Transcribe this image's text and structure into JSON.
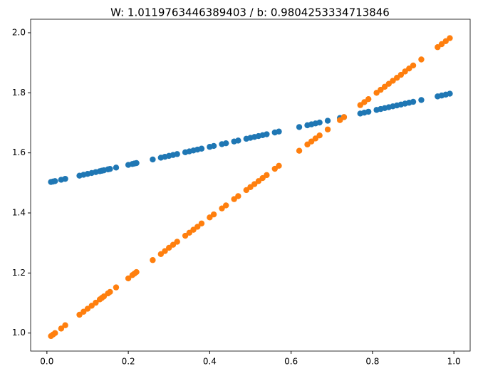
{
  "chart_data": {
    "type": "scatter",
    "title": "W: 1.0119763446389403 / b: 0.9804253334713846",
    "x": [
      0.01,
      0.015,
      0.02,
      0.035,
      0.045,
      0.08,
      0.09,
      0.1,
      0.11,
      0.12,
      0.13,
      0.135,
      0.14,
      0.15,
      0.155,
      0.17,
      0.2,
      0.21,
      0.215,
      0.22,
      0.26,
      0.28,
      0.29,
      0.3,
      0.31,
      0.32,
      0.34,
      0.35,
      0.36,
      0.37,
      0.38,
      0.4,
      0.41,
      0.43,
      0.44,
      0.46,
      0.47,
      0.49,
      0.5,
      0.51,
      0.52,
      0.53,
      0.54,
      0.56,
      0.57,
      0.62,
      0.64,
      0.65,
      0.66,
      0.67,
      0.69,
      0.72,
      0.73,
      0.77,
      0.78,
      0.79,
      0.81,
      0.82,
      0.83,
      0.84,
      0.85,
      0.86,
      0.87,
      0.88,
      0.89,
      0.9,
      0.92,
      0.96,
      0.97,
      0.98,
      0.99
    ],
    "series": [
      {
        "color": "#1f77b4",
        "values": [
          1.503,
          1.5045,
          1.506,
          1.5105,
          1.5135,
          1.524,
          1.527,
          1.53,
          1.533,
          1.536,
          1.539,
          1.5405,
          1.542,
          1.545,
          1.5465,
          1.551,
          1.56,
          1.563,
          1.5645,
          1.566,
          1.578,
          1.584,
          1.587,
          1.59,
          1.593,
          1.596,
          1.602,
          1.605,
          1.608,
          1.611,
          1.614,
          1.62,
          1.623,
          1.629,
          1.632,
          1.638,
          1.641,
          1.647,
          1.65,
          1.653,
          1.656,
          1.659,
          1.662,
          1.668,
          1.671,
          1.686,
          1.692,
          1.695,
          1.698,
          1.701,
          1.707,
          1.716,
          1.719,
          1.731,
          1.734,
          1.737,
          1.743,
          1.746,
          1.749,
          1.752,
          1.755,
          1.758,
          1.761,
          1.764,
          1.767,
          1.77,
          1.776,
          1.788,
          1.791,
          1.794,
          1.797
        ]
      },
      {
        "color": "#ff7f0e",
        "values": [
          0.99,
          0.995,
          1.0,
          1.015,
          1.026,
          1.061,
          1.071,
          1.081,
          1.091,
          1.101,
          1.112,
          1.117,
          1.122,
          1.132,
          1.137,
          1.152,
          1.182,
          1.193,
          1.198,
          1.203,
          1.243,
          1.263,
          1.273,
          1.284,
          1.294,
          1.304,
          1.324,
          1.334,
          1.344,
          1.354,
          1.365,
          1.385,
          1.395,
          1.415,
          1.425,
          1.446,
          1.456,
          1.476,
          1.486,
          1.496,
          1.506,
          1.516,
          1.526,
          1.547,
          1.557,
          1.607,
          1.628,
          1.638,
          1.648,
          1.658,
          1.678,
          1.709,
          1.719,
          1.759,
          1.769,
          1.779,
          1.8,
          1.81,
          1.82,
          1.83,
          1.84,
          1.85,
          1.86,
          1.871,
          1.881,
          1.891,
          1.911,
          1.952,
          1.962,
          1.972,
          1.982
        ]
      }
    ],
    "xlim": [
      -0.04,
      1.04
    ],
    "ylim": [
      0.94,
      2.045
    ],
    "xticks": [
      {
        "value": 0,
        "label": "0.0"
      },
      {
        "value": 0.2,
        "label": "0.2"
      },
      {
        "value": 0.4,
        "label": "0.4"
      },
      {
        "value": 0.6,
        "label": "0.6"
      },
      {
        "value": 0.8,
        "label": "0.8"
      },
      {
        "value": 1,
        "label": "1.0"
      }
    ],
    "yticks": [
      {
        "value": 1,
        "label": "1.0"
      },
      {
        "value": 1.2,
        "label": "1.2"
      },
      {
        "value": 1.4,
        "label": "1.4"
      },
      {
        "value": 1.6,
        "label": "1.6"
      },
      {
        "value": 1.8,
        "label": "1.8"
      },
      {
        "value": 2,
        "label": "2.0"
      }
    ]
  }
}
